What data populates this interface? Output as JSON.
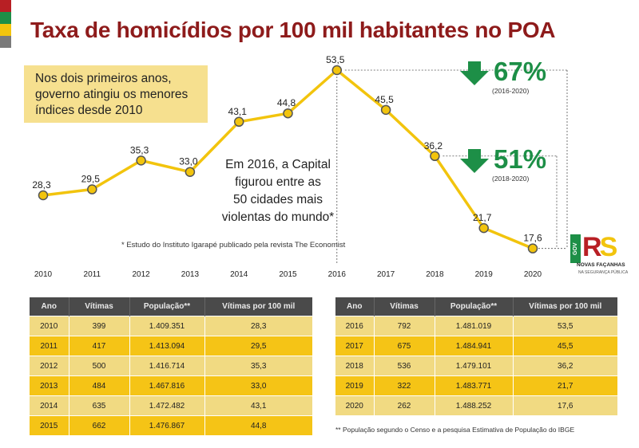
{
  "title": "Taxa de homicídios por 100 mil habitantes no POA",
  "colors": {
    "title": "#8e1b1b",
    "line": "#f2c40d",
    "marker_edge": "#555555",
    "highlight_green": "#1d8f47",
    "callout_bg": "#f6e08f",
    "table_header": "#4a4a4a",
    "row_light": "#f1da82",
    "row_dark": "#f5c416",
    "flag": [
      "#b81f24",
      "#1d8f47",
      "#f2c40d",
      "#7a7a7a"
    ]
  },
  "callout": {
    "line1": "Nos dois primeiros anos,",
    "line2": "governo atingiu os menores",
    "line3": "índices desde 2010"
  },
  "annotation": {
    "line1": "Em 2016, a Capital",
    "line2": "figurou entre as",
    "line3": "50 cidades mais",
    "line4": "violentas do mundo*"
  },
  "footnote_chart": "* Estudo do Instituto Igarapé publicado pela revista The Economist",
  "highlights": [
    {
      "percent": "67%",
      "period": "(2016-2020)",
      "icon": "arrow-down-icon"
    },
    {
      "percent": "51%",
      "period": "(2018-2020)",
      "icon": "arrow-down-icon"
    }
  ],
  "logo": {
    "gov": "GOV",
    "r": "R",
    "s": "S",
    "line1": "NOVAS FAÇANHAS",
    "line2": "NA SEGURANÇA PÚBLICA"
  },
  "chart_data": {
    "type": "line",
    "title": "Taxa de homicídios por 100 mil habitantes no POA",
    "x": [
      "2010",
      "2011",
      "2012",
      "2013",
      "2014",
      "2015",
      "2016",
      "2017",
      "2018",
      "2019",
      "2020"
    ],
    "series": [
      {
        "values": [
          28.3,
          29.5,
          35.3,
          33.0,
          43.1,
          44.8,
          53.5,
          45.5,
          36.2,
          21.7,
          17.6
        ]
      }
    ],
    "data_labels": [
      "28,3",
      "29,5",
      "35,3",
      "33,0",
      "43,1",
      "44,8",
      "53,5",
      "45,5",
      "36,2",
      "21,7",
      "17,6"
    ],
    "xlabel": "",
    "ylabel": "",
    "grid": false,
    "legend": "none"
  },
  "table_headers": [
    "Ano",
    "Vítimas",
    "População**",
    "Vítimas por 100 mil"
  ],
  "table_left": [
    [
      "2010",
      "399",
      "1.409.351",
      "28,3"
    ],
    [
      "2011",
      "417",
      "1.413.094",
      "29,5"
    ],
    [
      "2012",
      "500",
      "1.416.714",
      "35,3"
    ],
    [
      "2013",
      "484",
      "1.467.816",
      "33,0"
    ],
    [
      "2014",
      "635",
      "1.472.482",
      "43,1"
    ],
    [
      "2015",
      "662",
      "1.476.867",
      "44,8"
    ]
  ],
  "table_right": [
    [
      "2016",
      "792",
      "1.481.019",
      "53,5"
    ],
    [
      "2017",
      "675",
      "1.484.941",
      "45,5"
    ],
    [
      "2018",
      "536",
      "1.479.101",
      "36,2"
    ],
    [
      "2019",
      "322",
      "1.483.771",
      "21,7"
    ],
    [
      "2020",
      "262",
      "1.488.252",
      "17,6"
    ]
  ],
  "footnote_table": "** População segundo o Censo e a pesquisa Estimativa de População do IBGE"
}
